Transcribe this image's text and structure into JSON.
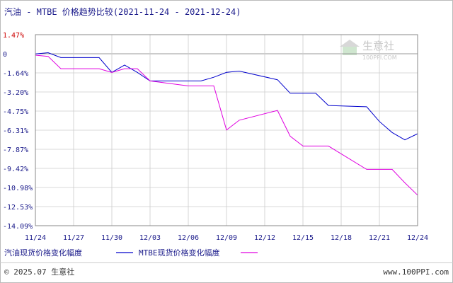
{
  "chart_data": {
    "type": "line",
    "title": "汽油 - MTBE 价格趋势比较",
    "date_range": "(2021-11-24 - 2021-12-24)",
    "xlabel": "",
    "ylabel": "",
    "ylim": [
      -14.09,
      1.47
    ],
    "y_ticks": [
      "1.47%",
      "0",
      "-1.64%",
      "-3.20%",
      "-4.75%",
      "-6.31%",
      "-7.87%",
      "-9.42%",
      "-10.98%",
      "-12.53%",
      "-14.09%"
    ],
    "x_ticks": [
      "11/24",
      "11/27",
      "11/30",
      "12/03",
      "12/06",
      "12/09",
      "12/12",
      "12/15",
      "12/18",
      "12/21",
      "12/24"
    ],
    "grid": true,
    "legend_position": "bottom-left",
    "x": [
      "11/24",
      "11/25",
      "11/26",
      "11/29",
      "11/30",
      "12/01",
      "12/02",
      "12/03",
      "12/06",
      "12/07",
      "12/08",
      "12/09",
      "12/10",
      "12/13",
      "12/14",
      "12/15",
      "12/16",
      "12/17",
      "12/20",
      "12/21",
      "12/22",
      "12/23",
      "12/24"
    ],
    "series": [
      {
        "name": "汽油现货价格变化幅度",
        "color": "#0000cc",
        "values": [
          -0.1,
          0.0,
          -0.4,
          -0.4,
          -1.6,
          -1.0,
          -1.6,
          -2.3,
          -2.3,
          -2.3,
          -2.0,
          -1.6,
          -1.5,
          -2.2,
          -3.3,
          -3.3,
          -3.3,
          -4.3,
          -4.4,
          -5.6,
          -6.5,
          -7.1,
          -6.6
        ]
      },
      {
        "name": "MTBE现货价格变化幅度",
        "color": "#e000e0",
        "values": [
          -0.2,
          -0.3,
          -1.3,
          -1.3,
          -1.6,
          -1.3,
          -1.3,
          -2.3,
          -2.7,
          -2.7,
          -2.7,
          -6.3,
          -5.5,
          -4.7,
          -6.8,
          -7.6,
          -7.6,
          -7.6,
          -9.5,
          -9.5,
          -9.5,
          -10.6,
          -11.6
        ]
      }
    ]
  },
  "footer": {
    "copyright": "© 2025.07 生意社",
    "website": "www.100PPI.com"
  },
  "watermark": {
    "name": "生意社",
    "url": "100PPI.COM"
  },
  "colors": {
    "axis_text": "#1a1a8a",
    "negative_tick": "#1a1a8a",
    "positive_tick": "#cc0000",
    "grid": "#cccccc"
  }
}
